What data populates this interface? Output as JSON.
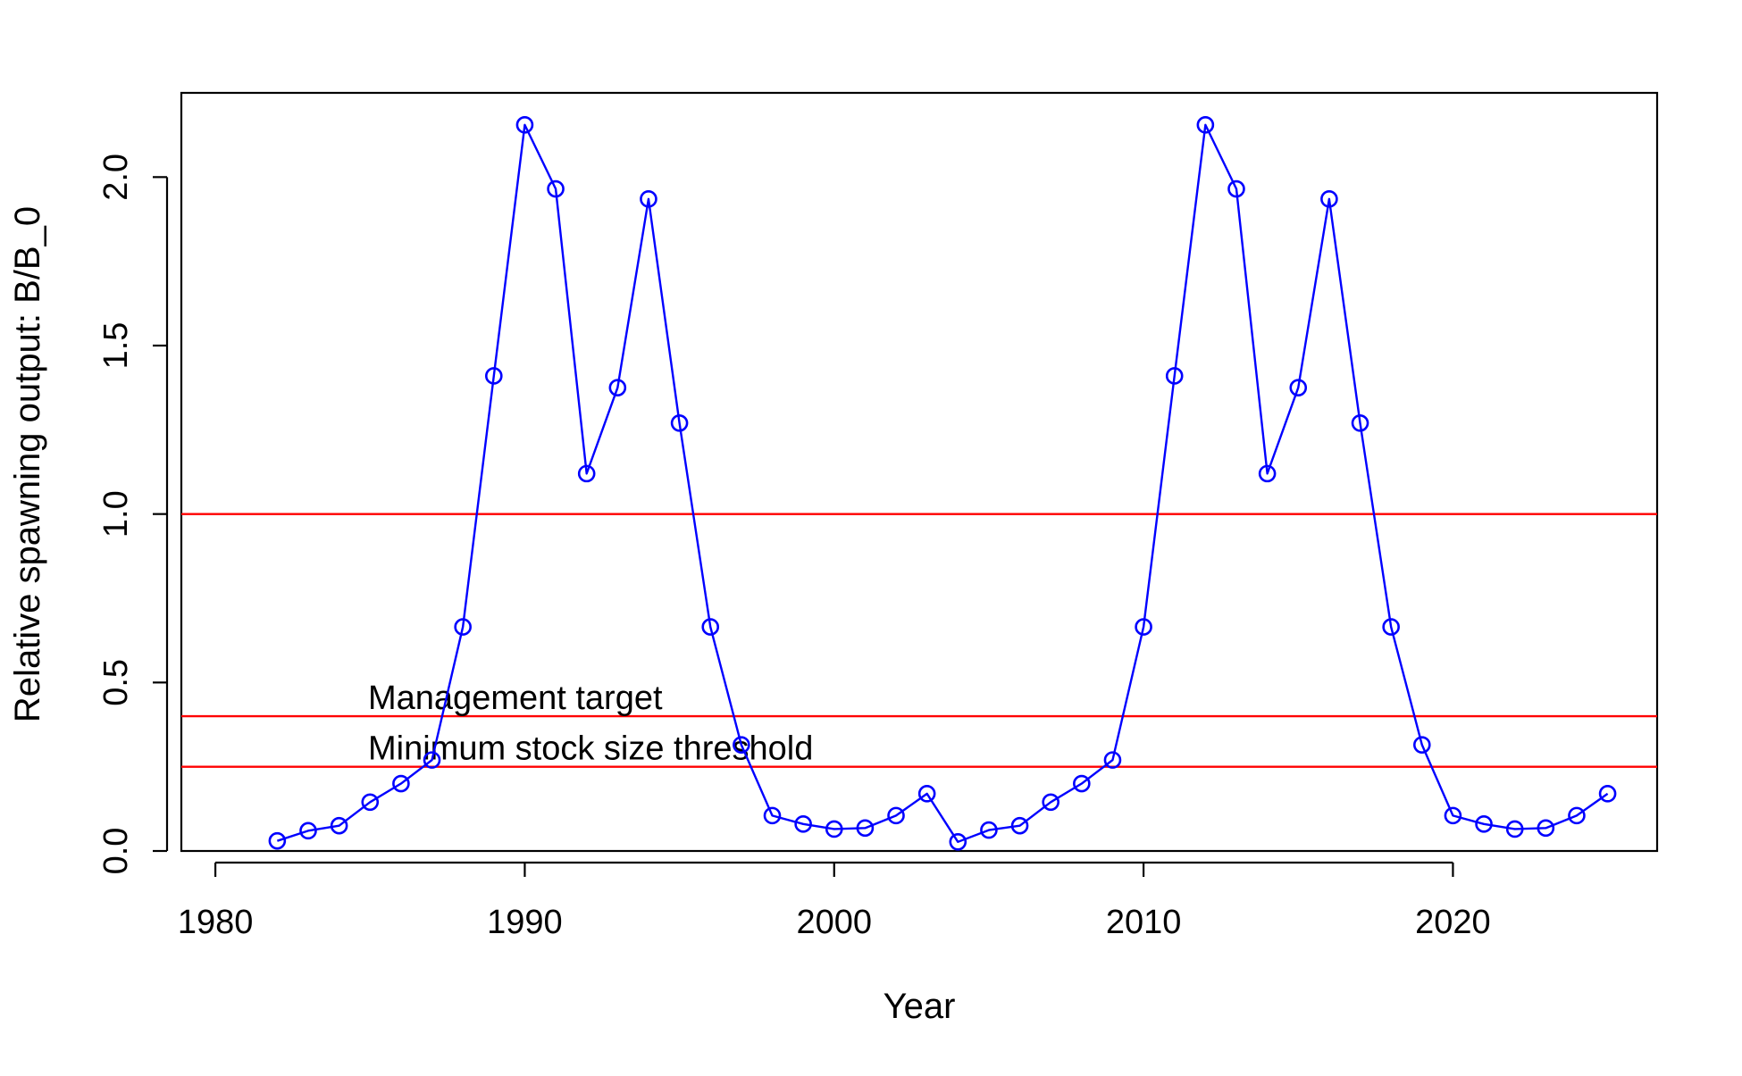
{
  "chart_data": {
    "type": "line",
    "title": "",
    "xlabel": "Year",
    "ylabel": "Relative spawning output: B/B_0",
    "xlim": [
      1978.9,
      2026.6
    ],
    "ylim": [
      0,
      2.25
    ],
    "xticks": [
      1980,
      1990,
      2000,
      2010,
      2020
    ],
    "xtick_labels": [
      "1980",
      "1990",
      "2000",
      "2010",
      "2020"
    ],
    "yticks": [
      0,
      0.5,
      1,
      1.5,
      2
    ],
    "ytick_labels": [
      "0.0",
      "0.5",
      "1.0",
      "1.5",
      "2.0"
    ],
    "grid": false,
    "legend": "none",
    "series": [
      {
        "color": "#0000ff",
        "marker": "open-circle",
        "x": [
          1982,
          1983,
          1984,
          1985,
          1986,
          1987,
          1988,
          1989,
          1990,
          1991,
          1992,
          1993,
          1994,
          1995,
          1996,
          1997,
          1998,
          1999,
          2000,
          2001,
          2002,
          2003,
          2004,
          2005,
          2006,
          2007,
          2008,
          2009,
          2010,
          2011,
          2012,
          2013,
          2014,
          2015,
          2016,
          2017,
          2018,
          2019,
          2020,
          2021,
          2022,
          2023,
          2024,
          2025
        ],
        "values": [
          0.03,
          0.06,
          0.075,
          0.145,
          0.2,
          0.27,
          0.665,
          1.41,
          2.155,
          1.965,
          1.12,
          1.375,
          1.935,
          1.27,
          0.665,
          0.315,
          0.105,
          0.08,
          0.065,
          0.068,
          0.105,
          0.17,
          0.027,
          0.062,
          0.075,
          0.145,
          0.2,
          0.27,
          0.665,
          1.41,
          2.155,
          1.965,
          1.12,
          1.375,
          1.935,
          1.27,
          0.665,
          0.315,
          0.105,
          0.08,
          0.065,
          0.068,
          0.105,
          0.17
        ]
      }
    ],
    "reference_lines": [
      {
        "value": 1.0,
        "color": "#ff0000",
        "label": ""
      },
      {
        "value": 0.4,
        "color": "#ff0000",
        "label": "Management target"
      },
      {
        "value": 0.25,
        "color": "#ff0000",
        "label": "Minimum stock size threshold"
      }
    ]
  }
}
